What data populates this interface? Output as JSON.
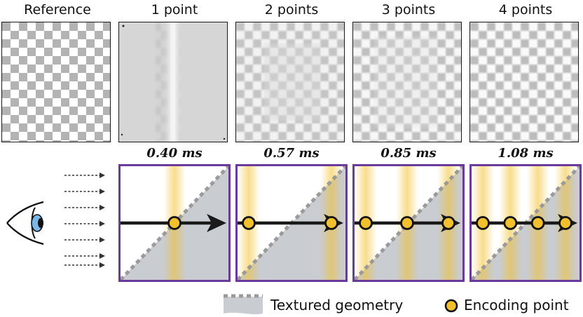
{
  "columns": [
    {
      "title": "Reference",
      "timing": "",
      "points": 0
    },
    {
      "title": "1 point",
      "timing": "0.40 ms",
      "points": 1
    },
    {
      "title": "2 points",
      "timing": "0.57 ms",
      "points": 2
    },
    {
      "title": "3 points",
      "timing": "0.85 ms",
      "points": 3
    },
    {
      "title": "4 points",
      "timing": "1.08 ms",
      "points": 4
    }
  ],
  "legend": {
    "geometry_label": "Textured geometry",
    "point_label": "Encoding point"
  },
  "colors": {
    "panel_border": "#6b3a9c",
    "geometry_fill": "#c9ccd1",
    "encoding_point": "#f2c02c",
    "ray": "#1a1a1a"
  }
}
